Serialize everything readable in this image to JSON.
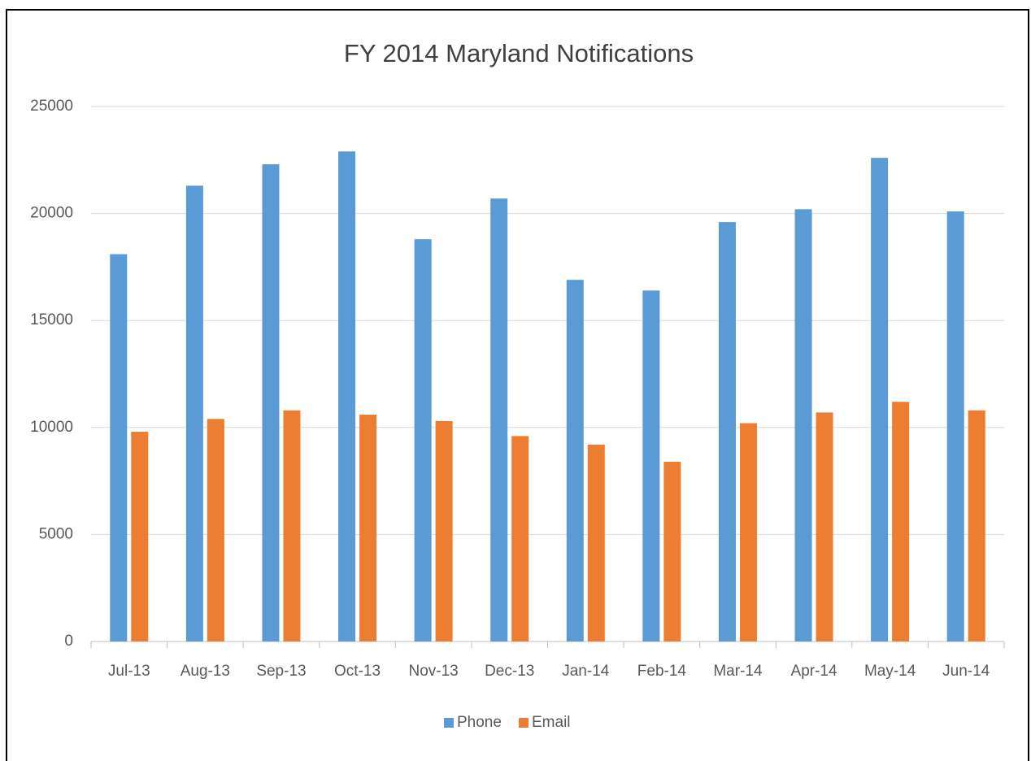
{
  "chart_data": {
    "type": "bar",
    "title": "FY 2014 Maryland Notifications",
    "categories": [
      "Jul-13",
      "Aug-13",
      "Sep-13",
      "Oct-13",
      "Nov-13",
      "Dec-13",
      "Jan-14",
      "Feb-14",
      "Mar-14",
      "Apr-14",
      "May-14",
      "Jun-14"
    ],
    "series": [
      {
        "name": "Phone",
        "color": "#5b9bd5",
        "values": [
          18100,
          21300,
          22300,
          22900,
          18800,
          20700,
          16900,
          16400,
          19600,
          20200,
          22600,
          20100
        ]
      },
      {
        "name": "Email",
        "color": "#ed7d31",
        "values": [
          9800,
          10400,
          10800,
          10600,
          10300,
          9600,
          9200,
          8400,
          10200,
          10700,
          11200,
          10800
        ]
      }
    ],
    "ylim": [
      0,
      25000
    ],
    "yticks": [
      0,
      5000,
      10000,
      15000,
      20000,
      25000
    ],
    "grid": true,
    "legend": "bottom"
  }
}
